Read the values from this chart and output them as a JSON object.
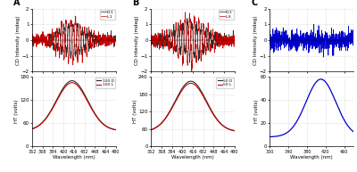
{
  "panel_labels": [
    "A",
    "B",
    "C"
  ],
  "xlabel": "Wavelength (nm)",
  "ylabel_cd": "CD Intensity (mdeg)",
  "ylabel_ht": "HT (volts)",
  "background_color": "#ffffff",
  "grid_color": "#b0b0b0",
  "panel_a": {
    "cd_legend": [
      "D-1",
      "L-1"
    ],
    "ht_legend": [
      "100 D",
      "100 L"
    ],
    "cd_ylim": [
      -2,
      2
    ],
    "ht_ylim": [
      0,
      180
    ],
    "cd_colors": [
      "#2a2a2a",
      "#cc0000"
    ],
    "ht_colors": [
      "#2a2a2a",
      "#cc0000"
    ],
    "xmin": 352,
    "xmax": 480,
    "xt": [
      352,
      368,
      384,
      400,
      416,
      432,
      448,
      464,
      480
    ],
    "xtl": [
      "352",
      "368",
      "384",
      "400",
      "416",
      "432",
      "448",
      "464",
      "480"
    ],
    "cd_yticks": [
      -2,
      -1,
      0,
      1,
      2
    ],
    "ht_yticks": [
      0,
      60,
      120,
      180
    ]
  },
  "panel_b": {
    "cd_legend": [
      "D-1",
      "L-S"
    ],
    "ht_legend": [
      "50 D",
      "50 L"
    ],
    "cd_ylim": [
      -2,
      2
    ],
    "ht_ylim": [
      0,
      240
    ],
    "cd_colors": [
      "#2a2a2a",
      "#cc0000"
    ],
    "ht_colors": [
      "#2a2a2a",
      "#cc0000"
    ],
    "xmin": 352,
    "xmax": 480,
    "xt": [
      352,
      368,
      384,
      400,
      416,
      432,
      448,
      464,
      480
    ],
    "xtl": [
      "352",
      "368",
      "384",
      "400",
      "416",
      "432",
      "448",
      "464",
      "480"
    ],
    "cd_yticks": [
      -2,
      -1,
      0,
      1,
      2
    ],
    "ht_yticks": [
      0,
      60,
      120,
      180,
      240
    ]
  },
  "panel_c": {
    "cd_legend": [],
    "ht_legend": [],
    "cd_ylim": [
      -2,
      2
    ],
    "ht_ylim": [
      0,
      60
    ],
    "cd_colors": [
      "#0000cc"
    ],
    "ht_colors": [
      "#0000cc"
    ],
    "xmin": 300,
    "xmax": 480,
    "xt": [
      300,
      340,
      380,
      420,
      460
    ],
    "xtl": [
      "300",
      "340",
      "380",
      "420",
      "460"
    ],
    "cd_yticks": [
      -2,
      -1,
      0,
      1,
      2
    ],
    "ht_yticks": [
      0,
      20,
      40,
      60
    ]
  }
}
